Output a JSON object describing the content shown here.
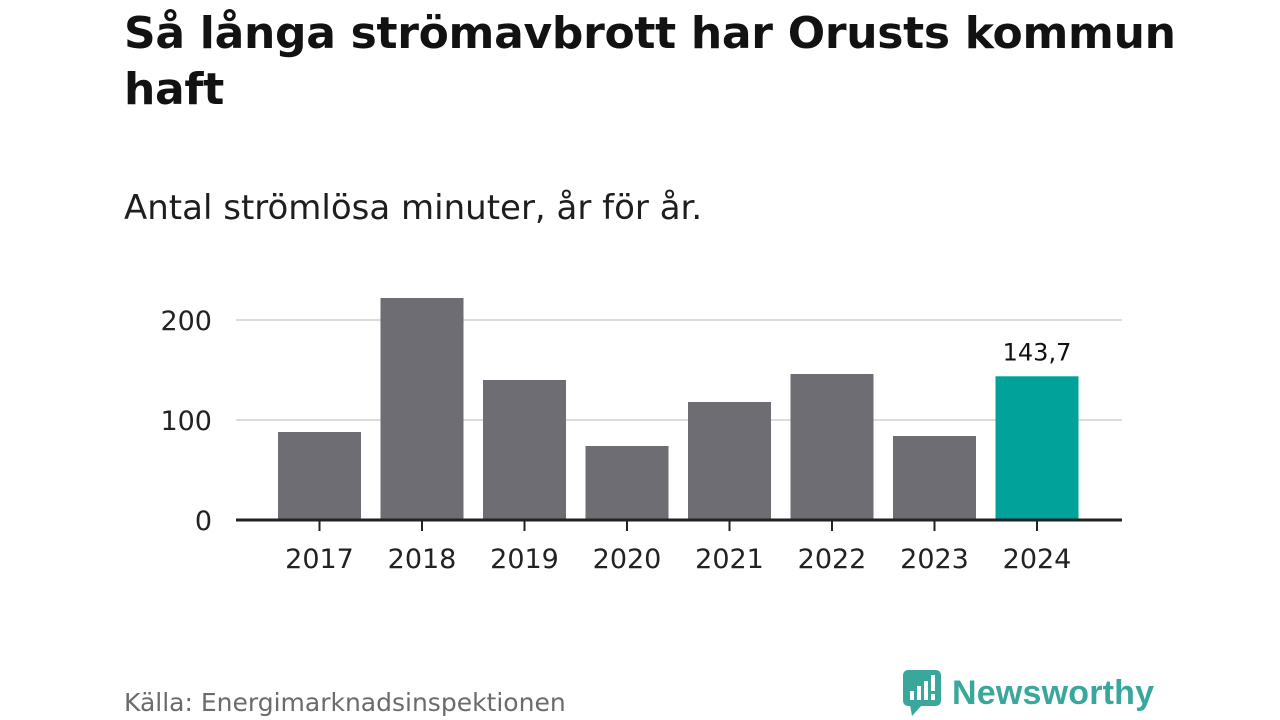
{
  "header": {
    "title": "Så långa strömavbrott har Orusts kommun haft",
    "subtitle": "Antal strömlösa minuter, år för år."
  },
  "footer": {
    "source": "Källa: Energimarknadsinspektionen",
    "brand": "Newsworthy"
  },
  "colors": {
    "bar": "#6e6d73",
    "highlight": "#00a299",
    "grid": "#dcdcdc",
    "axis": "#222222",
    "brand": "#3aa79d"
  },
  "chart_data": {
    "type": "bar",
    "title": "Så långa strömavbrott har Orusts kommun haft",
    "subtitle": "Antal strömlösa minuter, år för år.",
    "categories": [
      "2017",
      "2018",
      "2019",
      "2020",
      "2021",
      "2022",
      "2023",
      "2024"
    ],
    "values": [
      88,
      222,
      140,
      74,
      118,
      146,
      84,
      143.7
    ],
    "highlight_index": 7,
    "data_labels": [
      {
        "index": 7,
        "text": "143,7"
      }
    ],
    "yticks": [
      0,
      100,
      200
    ],
    "ylim": [
      0,
      225
    ],
    "grid": true,
    "legend": "none"
  }
}
